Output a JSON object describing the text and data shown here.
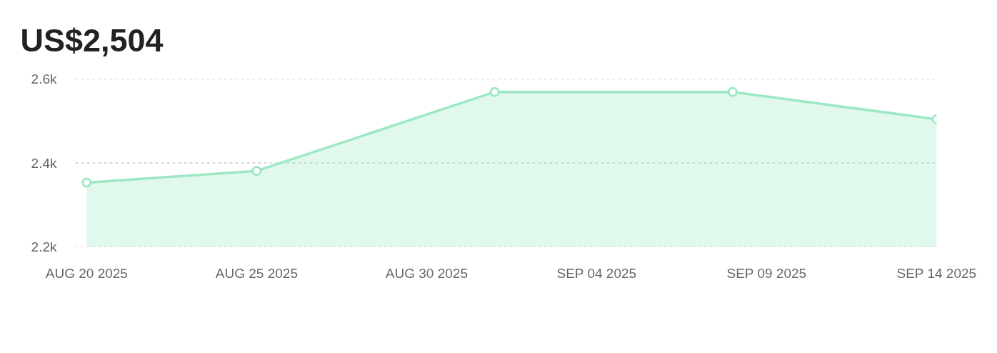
{
  "chart_data": {
    "type": "area",
    "title": "US$2,504",
    "x": [
      "2025-08-20",
      "2025-08-25",
      "2025-09-01",
      "2025-09-08",
      "2025-09-14"
    ],
    "series": [
      {
        "color": "#9de8c4",
        "values": [
          2353,
          2381,
          2569,
          2569,
          2504
        ]
      }
    ],
    "xlim": [
      "2025-08-19T16:00",
      "2025-09-14"
    ],
    "xticks": [
      {
        "value": "2025-08-20",
        "label": "AUG 20 2025"
      },
      {
        "value": "2025-08-25",
        "label": "AUG 25 2025"
      },
      {
        "value": "2025-08-30",
        "label": "AUG 30 2025"
      },
      {
        "value": "2025-09-04",
        "label": "SEP 04 2025"
      },
      {
        "value": "2025-09-09",
        "label": "SEP 09 2025"
      },
      {
        "value": "2025-09-14",
        "label": "SEP 14 2025"
      }
    ],
    "ylim": [
      2200,
      2600
    ],
    "yticks": [
      {
        "value": 2200,
        "label": "2.2k"
      },
      {
        "value": 2400,
        "label": "2.4k"
      },
      {
        "value": 2600,
        "label": "2.6k"
      }
    ],
    "grid": "y",
    "marker": "circle",
    "line_style": "solid"
  }
}
